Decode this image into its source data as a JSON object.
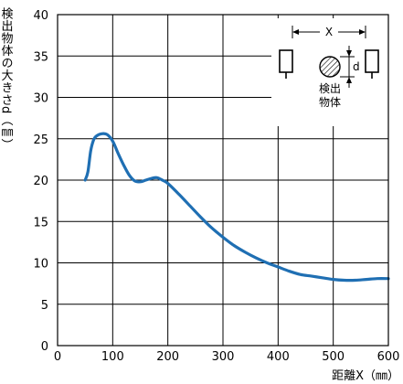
{
  "chart_data": {
    "type": "line",
    "ylabel": "検出物体の大きさd（㎜）",
    "xlabel": "距離X（㎜）",
    "xlim": [
      0,
      600
    ],
    "ylim": [
      0,
      40
    ],
    "x_ticks": [
      "0",
      "100",
      "200",
      "300",
      "400",
      "500",
      "600"
    ],
    "y_ticks": [
      "0",
      "5",
      "10",
      "15",
      "20",
      "25",
      "30",
      "35",
      "40"
    ],
    "grid": true,
    "line_color": "#1f6fb3",
    "series": [
      {
        "x": [
          50,
          55,
          60,
          65,
          70,
          80,
          90,
          100,
          110,
          120,
          130,
          140,
          150,
          160,
          170,
          180,
          190,
          200,
          220,
          240,
          260,
          280,
          300,
          320,
          340,
          360,
          380,
          400,
          420,
          440,
          460,
          480,
          500,
          520,
          540,
          560,
          580,
          600
        ],
        "y": [
          20,
          21,
          23.5,
          24.8,
          25.3,
          25.6,
          25.5,
          24.7,
          23.2,
          21.8,
          20.6,
          19.9,
          19.8,
          20.0,
          20.2,
          20.3,
          20.0,
          19.6,
          18.3,
          16.9,
          15.5,
          14.2,
          13.1,
          12.1,
          11.3,
          10.6,
          10.0,
          9.5,
          9.0,
          8.6,
          8.4,
          8.2,
          8.0,
          7.9,
          7.9,
          8.0,
          8.1,
          8.1
        ]
      }
    ]
  },
  "inset": {
    "x_label": "X",
    "d_label": "d",
    "object_label_line1": "検出",
    "object_label_line2": "物体"
  }
}
